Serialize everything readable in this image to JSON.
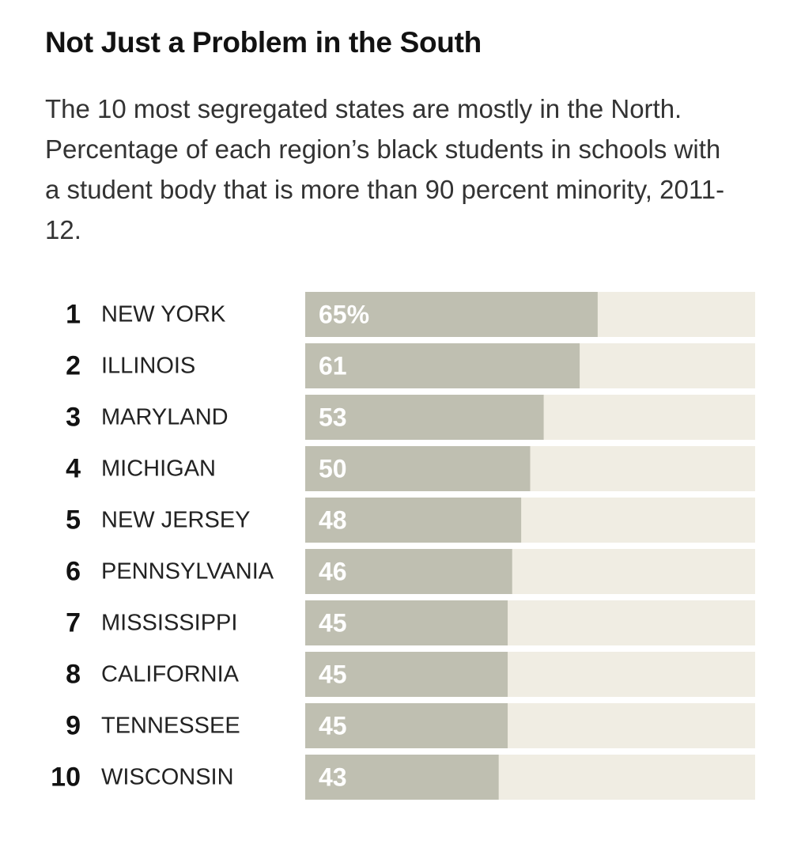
{
  "title": "Not Just a Problem in the South",
  "subtitle": "The 10 most segregated states are mostly in the North. Percentage of each region’s black students in schools with a student body that is more than 90 percent minority, 2011-12.",
  "colors": {
    "bar": "#bfbfb1",
    "track": "#f0ede3"
  },
  "chart_data": {
    "type": "bar",
    "orientation": "horizontal",
    "title": "Not Just a Problem in the South",
    "xlabel": "",
    "ylabel": "",
    "xlim": [
      0,
      100
    ],
    "grid": false,
    "categories": [
      "NEW YORK",
      "ILLINOIS",
      "MARYLAND",
      "MICHIGAN",
      "NEW JERSEY",
      "PENNSYLVANIA",
      "MISSISSIPPI",
      "CALIFORNIA",
      "TENNESSEE",
      "WISCONSIN"
    ],
    "ranks": [
      "1",
      "2",
      "3",
      "4",
      "5",
      "6",
      "7",
      "8",
      "9",
      "10"
    ],
    "values": [
      65,
      61,
      53,
      50,
      48,
      46,
      45,
      45,
      45,
      43
    ],
    "value_labels": [
      "65%",
      "61",
      "53",
      "50",
      "48",
      "46",
      "45",
      "45",
      "45",
      "43"
    ]
  }
}
